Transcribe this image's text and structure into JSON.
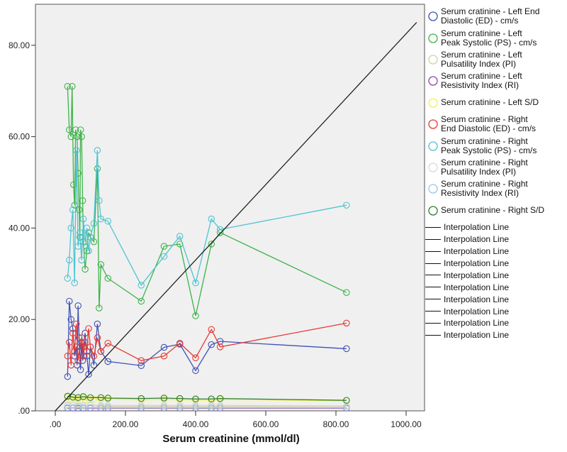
{
  "chart_data": {
    "type": "scatter",
    "title": "",
    "xlabel": "Serum creatinine (mmol/dl)",
    "ylabel": "",
    "xlim": [
      -55,
      1055
    ],
    "ylim": [
      0,
      89
    ],
    "x_ticks": [
      0,
      200,
      400,
      600,
      800,
      1000
    ],
    "x_tick_labels": [
      ".00",
      "200.00",
      "400.00",
      "600.00",
      "800.00",
      "1000.00"
    ],
    "y_ticks": [
      0,
      20,
      40,
      60,
      80
    ],
    "y_tick_labels": [
      ".00",
      "20.00",
      "40.00",
      "60.00",
      "80.00"
    ],
    "grid": false,
    "legend_position": "right",
    "reference_line": {
      "name": "Interpolation Line",
      "x": [
        0,
        1030
      ],
      "y": [
        0,
        85
      ]
    },
    "series": [
      {
        "name": "Serum cratinine - Left End Diastolic (ED) - cm/s",
        "color": "#3f51b5",
        "x": [
          35,
          40,
          45,
          50,
          55,
          60,
          62,
          65,
          68,
          70,
          72,
          75,
          78,
          80,
          85,
          90,
          95,
          100,
          110,
          120,
          130,
          150,
          245,
          310,
          355,
          400,
          445,
          470,
          830
        ],
        "y": [
          7.5,
          24,
          20,
          18,
          12,
          14,
          10,
          23,
          16,
          13,
          9,
          15,
          11,
          14,
          17,
          12,
          8,
          14,
          10,
          19,
          13,
          10.8,
          9.9,
          13.9,
          14.6,
          8.8,
          14.5,
          15.2,
          13.6
        ]
      },
      {
        "name": "Serum cratinine - Left Peak Systolic (PS) - cm/s",
        "color": "#3db34a",
        "x": [
          35,
          40,
          45,
          48,
          52,
          55,
          58,
          62,
          65,
          68,
          70,
          72,
          75,
          78,
          80,
          85,
          90,
          95,
          100,
          110,
          120,
          125,
          130,
          150,
          245,
          310,
          355,
          400,
          445,
          470,
          830
        ],
        "y": [
          71,
          61.5,
          60,
          71,
          49.5,
          45,
          61.5,
          60,
          52,
          44,
          38,
          61.5,
          60,
          46,
          37,
          31,
          35,
          39,
          38,
          37,
          53,
          22.5,
          32,
          29,
          24,
          36,
          36.5,
          20.8,
          36.5,
          39,
          25.9
        ]
      },
      {
        "name": "Serum cratinine - Left Pulsatility Index (PI)",
        "color": "#cfd3a0",
        "x": [
          35,
          50,
          65,
          80,
          100,
          130,
          150,
          245,
          310,
          355,
          400,
          445,
          470,
          830
        ],
        "y": [
          1.1,
          1.2,
          1.0,
          1.1,
          1.2,
          1.0,
          1.0,
          1.0,
          1.0,
          1.0,
          1.0,
          1.0,
          1.0,
          1.0
        ]
      },
      {
        "name": "Serum cratinine - Left Resistivity Index (RI)",
        "color": "#8e44ad",
        "x": [
          35,
          50,
          65,
          80,
          100,
          130,
          150,
          245,
          310,
          355,
          400,
          445,
          470,
          830
        ],
        "y": [
          0.6,
          0.6,
          0.6,
          0.6,
          0.6,
          0.6,
          0.6,
          0.6,
          0.6,
          0.6,
          0.6,
          0.6,
          0.6,
          0.6
        ]
      },
      {
        "name": "Serum cratinine - Left S/D",
        "color": "#f1ef5a",
        "x": [
          35,
          45,
          55,
          65,
          75,
          85,
          95,
          110,
          130,
          150,
          245,
          310,
          355,
          400,
          445,
          470,
          830
        ],
        "y": [
          3.0,
          2.6,
          2.8,
          2.5,
          3.1,
          2.4,
          2.7,
          2.6,
          2.6,
          2.6,
          2.4,
          2.5,
          2.4,
          2.4,
          2.3,
          2.5,
          2.2
        ]
      },
      {
        "name": "Serum cratinine - Right End Diastolic (ED) - cm/s",
        "color": "#e53935",
        "x": [
          35,
          40,
          45,
          50,
          55,
          60,
          65,
          70,
          75,
          80,
          85,
          90,
          95,
          100,
          110,
          120,
          130,
          150,
          245,
          310,
          355,
          400,
          445,
          470,
          830
        ],
        "y": [
          12,
          15,
          10,
          17,
          13,
          19,
          11,
          14,
          16,
          12,
          15,
          13,
          18,
          14,
          12,
          16,
          13,
          14.8,
          11,
          12,
          14.8,
          11.6,
          17.8,
          14,
          19.2
        ]
      },
      {
        "name": "Serum cratinine - Right Peak Systolic (PS) - cm/s",
        "color": "#4fc3d0",
        "x": [
          35,
          40,
          45,
          50,
          55,
          60,
          65,
          70,
          75,
          80,
          85,
          90,
          95,
          100,
          110,
          120,
          125,
          130,
          150,
          245,
          310,
          355,
          400,
          445,
          470,
          830
        ],
        "y": [
          29,
          33,
          40,
          44,
          28,
          57,
          36,
          39,
          33,
          42,
          37,
          40,
          35,
          38,
          41,
          57,
          46,
          42,
          41.5,
          27.5,
          33.8,
          38.2,
          28,
          42,
          39.7,
          45
        ]
      },
      {
        "name": "Serum cratinine - Right Pulsatility Index (PI)",
        "color": "#d8d8d8",
        "x": [
          35,
          50,
          65,
          80,
          100,
          130,
          150,
          245,
          310,
          355,
          400,
          445,
          470,
          830
        ],
        "y": [
          1.3,
          1.2,
          1.4,
          1.2,
          1.3,
          1.2,
          1.2,
          1.2,
          1.2,
          1.2,
          1.2,
          1.2,
          1.2,
          1.1
        ]
      },
      {
        "name": "Serum cratinine - Right Resistivity Index (RI)",
        "color": "#9ec4e4",
        "x": [
          35,
          50,
          65,
          80,
          100,
          130,
          150,
          245,
          310,
          355,
          400,
          445,
          470,
          830
        ],
        "y": [
          0.7,
          0.7,
          0.7,
          0.7,
          0.7,
          0.7,
          0.7,
          0.7,
          0.7,
          0.7,
          0.7,
          0.7,
          0.7,
          0.7
        ]
      },
      {
        "name": "Serum cratinine - Right S/D",
        "color": "#2e7d32",
        "x": [
          35,
          50,
          65,
          80,
          100,
          130,
          150,
          245,
          310,
          355,
          400,
          445,
          470,
          830
        ],
        "y": [
          3.2,
          3.0,
          2.9,
          3.1,
          2.9,
          2.9,
          2.8,
          2.7,
          2.8,
          2.7,
          2.6,
          2.6,
          2.7,
          2.3
        ]
      }
    ],
    "legend": {
      "series_labels": [
        [
          "Serum cratinine - Left End",
          "Diastolic (ED) - cm/s"
        ],
        [
          "Serum cratinine - Left",
          "Peak Systolic (PS) - cm/s"
        ],
        [
          "Serum cratinine - Left",
          "Pulsatility Index (PI)"
        ],
        [
          "Serum cratinine - Left",
          "Resistivity Index (RI)"
        ],
        [
          "Serum cratinine - Left S/D"
        ],
        [
          "Serum cratinine - Right",
          "End Diastolic (ED) - cm/s"
        ],
        [
          "Serum cratinine - Right",
          "Peak Systolic (PS) - cm/s"
        ],
        [
          "Serum cratinine - Right",
          "Pulsatility Index (PI)"
        ],
        [
          "Serum cratinine - Right",
          "Resistivity Index (RI)"
        ],
        [
          "Serum cratinine - Right S/D"
        ]
      ],
      "line_labels": [
        "Interpolation Line",
        "Interpolation Line",
        "Interpolation Line",
        "Interpolation Line",
        "Interpolation Line",
        "Interpolation Line",
        "Interpolation Line",
        "Interpolation Line",
        "Interpolation Line",
        "Interpolation Line"
      ]
    }
  }
}
